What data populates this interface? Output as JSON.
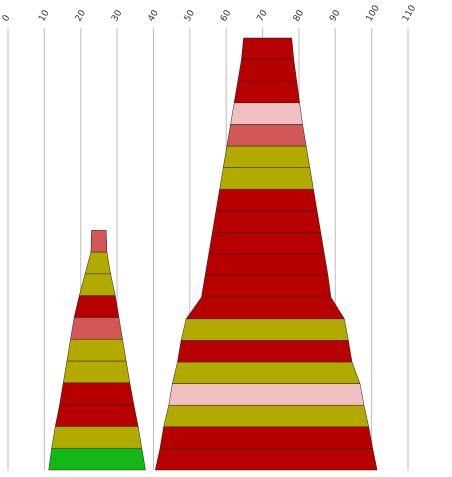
{
  "chart_data": {
    "type": "bar",
    "subtype": "stacked-trapezoid-stacks",
    "title": "",
    "xlabel": "",
    "ylabel": "",
    "xlim": [
      0,
      110
    ],
    "xticks": [
      "0",
      "10",
      "20",
      "30",
      "40",
      "50",
      "60",
      "70",
      "80",
      "90",
      "100",
      "110"
    ],
    "grid": true,
    "legend": "none",
    "colors": {
      "dark_red": "#b80000",
      "olive": "#b3aa00",
      "mid_red": "#d45757",
      "pink": "#f0c0c0",
      "green": "#14b814"
    },
    "stacks": [
      {
        "bands": [
          {
            "color": "green",
            "left": 11.2,
            "right": 37.8
          },
          {
            "color": "olive",
            "left": 12.0,
            "right": 36.8
          },
          {
            "color": "dark_red",
            "left": 13.0,
            "right": 35.8
          },
          {
            "color": "dark_red",
            "left": 14.2,
            "right": 34.6
          },
          {
            "color": "olive",
            "left": 15.2,
            "right": 33.5
          },
          {
            "color": "olive",
            "left": 16.2,
            "right": 32.5
          },
          {
            "color": "mid_red",
            "left": 17.2,
            "right": 31.5
          },
          {
            "color": "dark_red",
            "left": 18.2,
            "right": 30.5
          },
          {
            "color": "olive",
            "left": 19.6,
            "right": 29.5
          },
          {
            "color": "olive",
            "left": 21.2,
            "right": 28.2
          },
          {
            "color": "mid_red",
            "left": 22.8,
            "right": 27.2
          }
        ]
      },
      {
        "bands": [
          {
            "color": "dark_red",
            "left": 40.5,
            "right": 101.5
          },
          {
            "color": "dark_red",
            "left": 41.8,
            "right": 100.3
          },
          {
            "color": "olive",
            "left": 42.8,
            "right": 99.2
          },
          {
            "color": "pink",
            "left": 44.2,
            "right": 97.9
          },
          {
            "color": "olive",
            "left": 45.2,
            "right": 96.8
          },
          {
            "color": "dark_red",
            "left": 46.6,
            "right": 94.6
          },
          {
            "color": "olive",
            "left": 47.6,
            "right": 93.6
          },
          {
            "color": "dark_red",
            "left": 49.0,
            "right": 92.5
          },
          {
            "color": "dark_red",
            "left": 53.2,
            "right": 88.8
          },
          {
            "color": "dark_red",
            "left": 54.2,
            "right": 88.0
          },
          {
            "color": "dark_red",
            "left": 55.2,
            "right": 87.0
          },
          {
            "color": "dark_red",
            "left": 56.2,
            "right": 86.0
          },
          {
            "color": "dark_red",
            "left": 57.2,
            "right": 85.0
          },
          {
            "color": "olive",
            "left": 58.2,
            "right": 84.0
          },
          {
            "color": "olive",
            "left": 59.2,
            "right": 83.0
          },
          {
            "color": "mid_red",
            "left": 60.2,
            "right": 82.0
          },
          {
            "color": "pink",
            "left": 61.2,
            "right": 81.0
          },
          {
            "color": "dark_red",
            "left": 62.2,
            "right": 80.2
          },
          {
            "color": "dark_red",
            "left": 63.2,
            "right": 79.4
          },
          {
            "color": "dark_red",
            "left": 64.2,
            "right": 78.6
          }
        ]
      }
    ]
  }
}
